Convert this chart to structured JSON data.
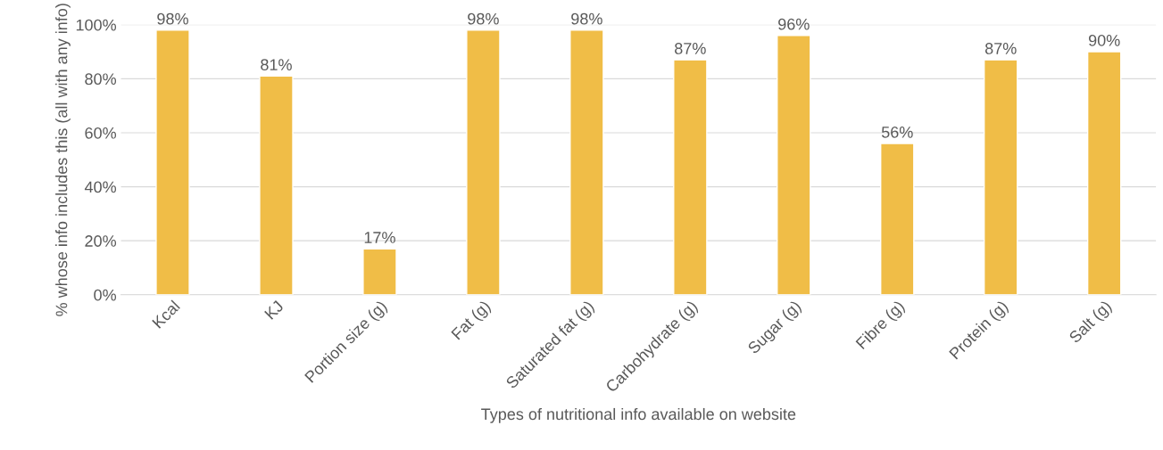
{
  "chart_data": {
    "type": "bar",
    "xlabel": "Types of nutritional info available on website",
    "ylabel": "% whose info includes this (all with any info)",
    "categories": [
      "Kcal",
      "KJ",
      "Portion size (g)",
      "Fat (g)",
      "Saturated fat (g)",
      "Carbohydrate (g)",
      "Sugar (g)",
      "Fibre (g)",
      "Protein (g)",
      "Salt (g)"
    ],
    "values": [
      98,
      81,
      17,
      98,
      98,
      87,
      96,
      56,
      87,
      90
    ],
    "value_labels": [
      "98%",
      "81%",
      "17%",
      "98%",
      "98%",
      "87%",
      "96%",
      "56%",
      "87%",
      "90%"
    ],
    "color": "#f0bd47",
    "ylim": [
      0,
      100
    ],
    "yticks": [
      {
        "value": 0,
        "label": "0%"
      },
      {
        "value": 20,
        "label": "20%"
      },
      {
        "value": 40,
        "label": "40%"
      },
      {
        "value": 60,
        "label": "60%"
      },
      {
        "value": 80,
        "label": "80%"
      },
      {
        "value": 100,
        "label": "100%"
      }
    ],
    "grid": "y"
  }
}
